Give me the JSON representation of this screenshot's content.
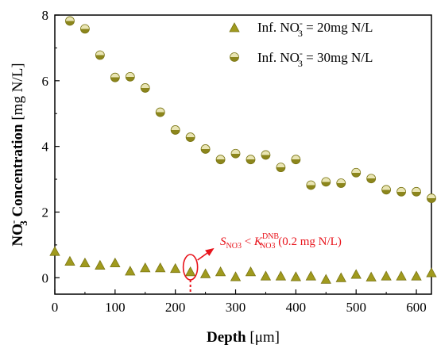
{
  "chart_data": {
    "type": "scatter",
    "xlabel": {
      "main": "Depth",
      "unit": "[μm]"
    },
    "ylabel": {
      "pre": "NO",
      "sup": "-",
      "sub": "3",
      "main": " Concentration",
      "unit": " [mg N/L]"
    },
    "xlim": [
      0,
      625
    ],
    "ylim": [
      -0.5,
      8
    ],
    "xticks": [
      0,
      100,
      200,
      300,
      400,
      500,
      600
    ],
    "yticks": [
      0,
      2,
      4,
      6,
      8
    ],
    "grid": false,
    "legend_position": "top-right",
    "series": [
      {
        "name": {
          "pre": "Inf. NO",
          "sup": "-",
          "sub": "3",
          "post": " = 20mg N/L"
        },
        "marker": "triangle",
        "color": "#a09a1e",
        "x": [
          0,
          25,
          50,
          75,
          100,
          125,
          150,
          175,
          200,
          225,
          250,
          275,
          300,
          325,
          350,
          375,
          400,
          425,
          450,
          475,
          500,
          525,
          550,
          575,
          600,
          625
        ],
        "y": [
          0.8,
          0.5,
          0.45,
          0.38,
          0.45,
          0.2,
          0.3,
          0.3,
          0.28,
          0.18,
          0.12,
          0.18,
          0.03,
          0.18,
          0.05,
          0.05,
          0.03,
          0.05,
          -0.05,
          0.0,
          0.1,
          0.02,
          0.05,
          0.05,
          0.05,
          0.15
        ]
      },
      {
        "name": {
          "pre": "Inf. NO",
          "sup": "-",
          "sub": "3",
          "post": " = 30mg N/L"
        },
        "marker": "circle",
        "color": "#a09a1e",
        "x": [
          25,
          50,
          75,
          100,
          125,
          150,
          175,
          200,
          225,
          250,
          275,
          300,
          325,
          350,
          375,
          400,
          425,
          450,
          475,
          500,
          525,
          550,
          575,
          600,
          625
        ],
        "y": [
          7.82,
          7.58,
          6.78,
          6.1,
          6.12,
          5.78,
          5.04,
          4.5,
          4.28,
          3.92,
          3.6,
          3.78,
          3.6,
          3.74,
          3.36,
          3.6,
          2.82,
          2.92,
          2.88,
          3.2,
          3.02,
          2.68,
          2.62,
          2.62,
          2.42
        ]
      }
    ],
    "annotation": {
      "x": 225,
      "y": 0.2,
      "color": "#e8141c",
      "S": "S",
      "S_sub": "NO3",
      "lt": " < ",
      "K": "K",
      "K_sup": "DNB",
      "K_sub": "NO3",
      "value": " (0.2 mg N/L)"
    }
  }
}
